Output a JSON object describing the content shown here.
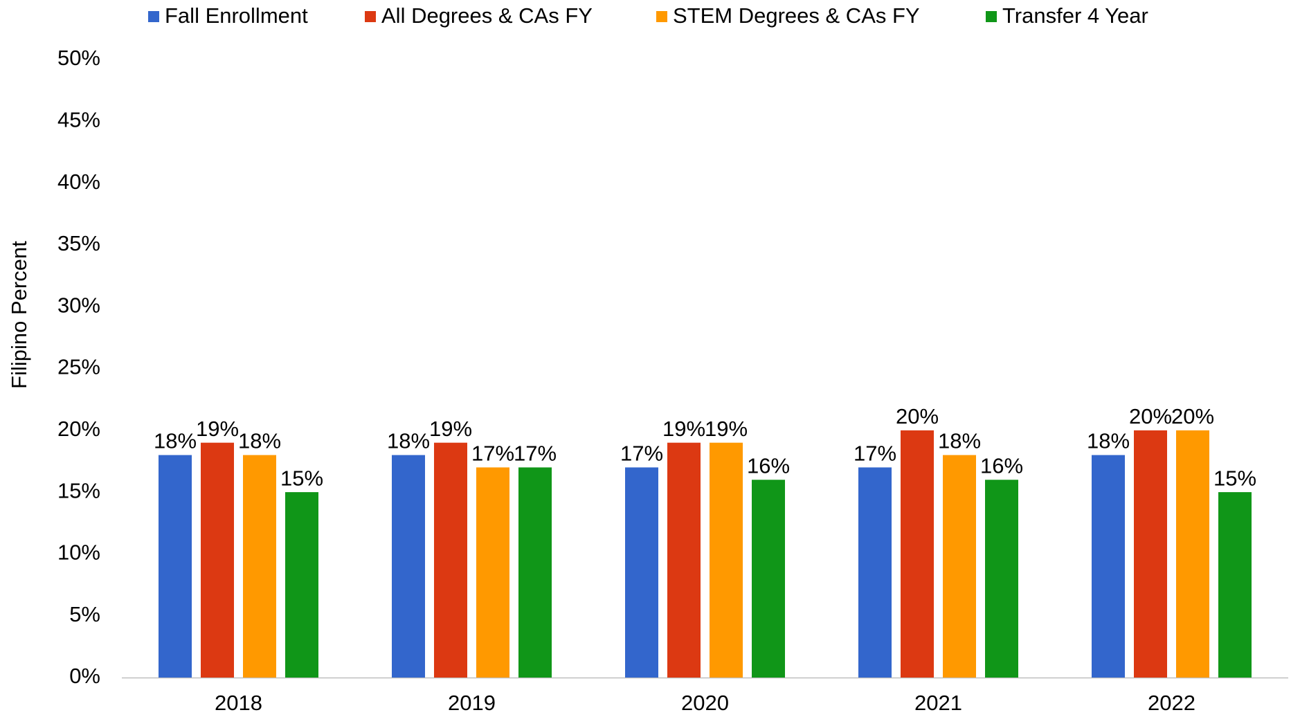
{
  "chart_data": {
    "type": "bar",
    "y_axis_label": "Filipino Percent",
    "categories": [
      "2018",
      "2019",
      "2020",
      "2021",
      "2022"
    ],
    "series": [
      {
        "name": "Fall Enrollment",
        "color": "#3366cc",
        "values": [
          18,
          18,
          17,
          17,
          18
        ],
        "value_labels": [
          "18%",
          "18%",
          "17%",
          "17%",
          "18%"
        ]
      },
      {
        "name": "All Degrees & CAs FY",
        "color": "#dc3912",
        "values": [
          19,
          19,
          19,
          20,
          20
        ],
        "value_labels": [
          "19%",
          "19%",
          "19%",
          "20%",
          "20%"
        ]
      },
      {
        "name": "STEM Degrees & CAs FY",
        "color": "#ff9900",
        "values": [
          18,
          17,
          19,
          18,
          20
        ],
        "value_labels": [
          "18%",
          "17%",
          "19%",
          "18%",
          "20%"
        ]
      },
      {
        "name": "Transfer 4 Year",
        "color": "#109618",
        "values": [
          15,
          17,
          16,
          16,
          15
        ],
        "value_labels": [
          "15%",
          "17%",
          "16%",
          "16%",
          "15%"
        ]
      }
    ],
    "ylim": [
      0,
      50
    ],
    "yticks": [
      {
        "value": 0,
        "label": "0%"
      },
      {
        "value": 5,
        "label": "5%"
      },
      {
        "value": 10,
        "label": "10%"
      },
      {
        "value": 15,
        "label": "15%"
      },
      {
        "value": 20,
        "label": "20%"
      },
      {
        "value": 25,
        "label": "25%"
      },
      {
        "value": 30,
        "label": "30%"
      },
      {
        "value": 35,
        "label": "35%"
      },
      {
        "value": 40,
        "label": "40%"
      },
      {
        "value": 45,
        "label": "45%"
      },
      {
        "value": 50,
        "label": "50%"
      }
    ],
    "grid": false,
    "legend": "top"
  }
}
